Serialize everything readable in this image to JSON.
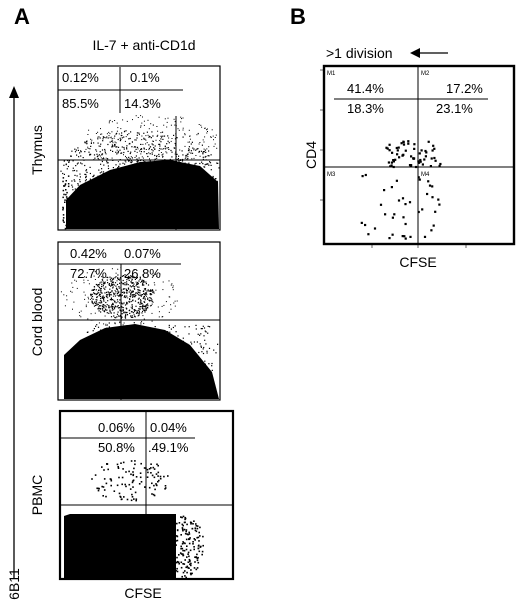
{
  "panel_labels": {
    "a": "A",
    "b": "B"
  },
  "panel_a": {
    "condition": "IL-7 + anti-CD1d",
    "y_axis": "6B11",
    "x_axis": "CFSE",
    "plots": [
      {
        "sample": "Thymus",
        "q_ul": "0.12%",
        "q_ur": "0.1%",
        "q_ll": "85.5%",
        "q_lr": "14.3%"
      },
      {
        "sample": "Cord blood",
        "q_ul": "0.42%",
        "q_ur": "0.07%",
        "q_ll": "72.7%",
        "q_lr": "26,8%"
      },
      {
        "sample": "PBMC",
        "q_ul": "0.06%",
        "q_ur": "0.04%",
        "q_ll": "50.8%",
        "q_lr": ".49.1%"
      }
    ]
  },
  "panel_b": {
    "annotation": ">1 division",
    "y_axis": "CD4",
    "x_axis": "CFSE",
    "gates": {
      "m1": "M1",
      "m2": "M2",
      "m3": "M3",
      "m4": "M4"
    },
    "q_ul": "41.4%",
    "q_ur": "17.2%",
    "q_ll": "18.3%",
    "q_lr": "23.1%"
  }
}
